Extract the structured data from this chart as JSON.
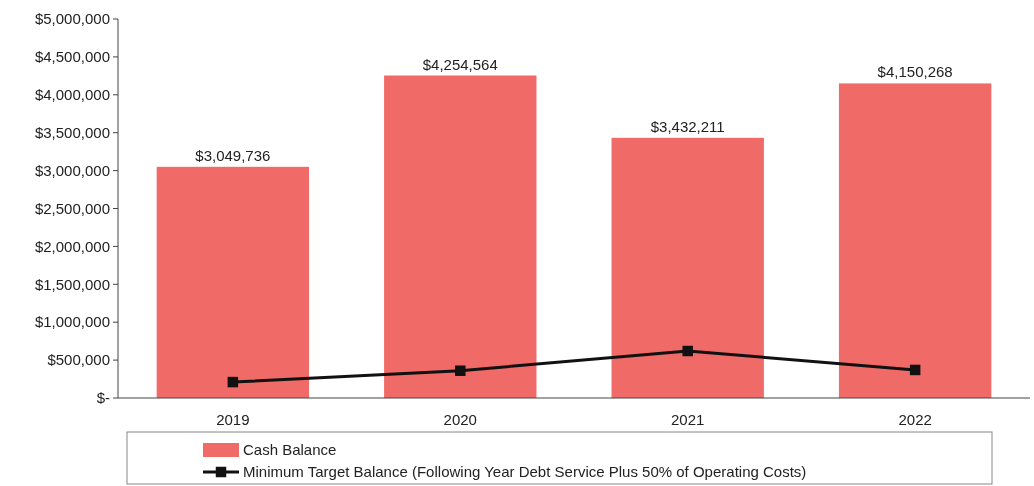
{
  "chart_data": {
    "type": "bar",
    "categories": [
      "2019",
      "2020",
      "2021",
      "2022"
    ],
    "series": [
      {
        "name": "Cash Balance",
        "color": "#f06a68",
        "values": [
          3049736,
          4254564,
          3432211,
          4150268
        ],
        "value_labels": [
          "$3,049,736",
          "$4,254,564",
          "$3,432,211",
          "$4,150,268"
        ]
      },
      {
        "name": "Minimum Target Balance (Following Year Debt Service Plus 50% of Operating Costs)",
        "type": "line",
        "color": "#111111",
        "values": [
          210000,
          360000,
          620000,
          370000
        ],
        "marker": "square",
        "line_style": "solid"
      }
    ],
    "ylim": [
      0,
      5000000
    ],
    "yticks": [
      {
        "value": 0,
        "label": "$-"
      },
      {
        "value": 500000,
        "label": "$500,000"
      },
      {
        "value": 1000000,
        "label": "$1,000,000"
      },
      {
        "value": 1500000,
        "label": "$1,500,000"
      },
      {
        "value": 2000000,
        "label": "$2,000,000"
      },
      {
        "value": 2500000,
        "label": "$2,500,000"
      },
      {
        "value": 3000000,
        "label": "$3,000,000"
      },
      {
        "value": 3500000,
        "label": "$3,500,000"
      },
      {
        "value": 4000000,
        "label": "$4,000,000"
      },
      {
        "value": 4500000,
        "label": "$4,500,000"
      },
      {
        "value": 5000000,
        "label": "$5,000,000"
      }
    ],
    "grid": false,
    "legend": "bottom"
  }
}
